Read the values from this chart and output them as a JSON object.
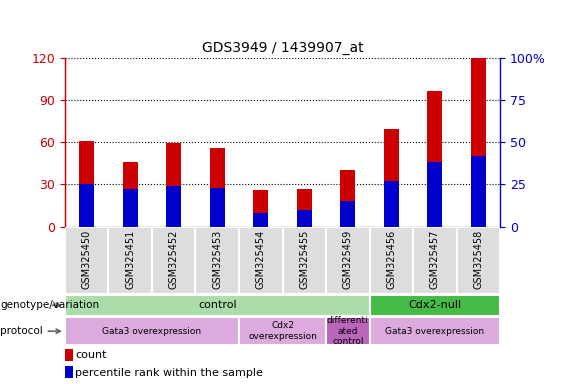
{
  "title": "GDS3949 / 1439907_at",
  "samples": [
    "GSM325450",
    "GSM325451",
    "GSM325452",
    "GSM325453",
    "GSM325454",
    "GSM325455",
    "GSM325459",
    "GSM325456",
    "GSM325457",
    "GSM325458"
  ],
  "count_values": [
    61,
    46,
    59,
    56,
    26,
    27,
    40,
    69,
    96,
    120
  ],
  "percentile_values": [
    25,
    22,
    24,
    23,
    8,
    10,
    15,
    27,
    38,
    42
  ],
  "ylim_left": [
    0,
    120
  ],
  "ylim_right": [
    0,
    100
  ],
  "yticks_left": [
    0,
    30,
    60,
    90,
    120
  ],
  "yticks_right": [
    0,
    25,
    50,
    75,
    100
  ],
  "ytick_labels_left": [
    "0",
    "30",
    "60",
    "90",
    "120"
  ],
  "ytick_labels_right": [
    "0",
    "25",
    "50",
    "75",
    "100%"
  ],
  "left_axis_color": "#cc0000",
  "right_axis_color": "#0000cc",
  "bar_color_count": "#cc0000",
  "bar_color_percentile": "#0000cc",
  "bar_width": 0.35,
  "genotype_groups": [
    {
      "label": "control",
      "start": 0,
      "end": 7,
      "color": "#aaddaa"
    },
    {
      "label": "Cdx2-null",
      "start": 7,
      "end": 10,
      "color": "#44bb44"
    }
  ],
  "protocol_groups": [
    {
      "label": "Gata3 overexpression",
      "start": 0,
      "end": 4,
      "color": "#ddaadd"
    },
    {
      "label": "Cdx2\noverexpression",
      "start": 4,
      "end": 6,
      "color": "#ddaadd"
    },
    {
      "label": "differenti\nated\ncontrol",
      "start": 6,
      "end": 7,
      "color": "#bb66bb"
    },
    {
      "label": "Gata3 overexpression",
      "start": 7,
      "end": 10,
      "color": "#ddaadd"
    }
  ],
  "xlabel_genotype": "genotype/variation",
  "xlabel_protocol": "protocol",
  "legend_count_label": "count",
  "legend_percentile_label": "percentile rank within the sample",
  "bg_color_plot": "#ffffff",
  "bg_color_tick_area": "#dddddd",
  "tick_label_fontsize": 7,
  "grid_color": "black",
  "grid_linestyle": "dotted"
}
